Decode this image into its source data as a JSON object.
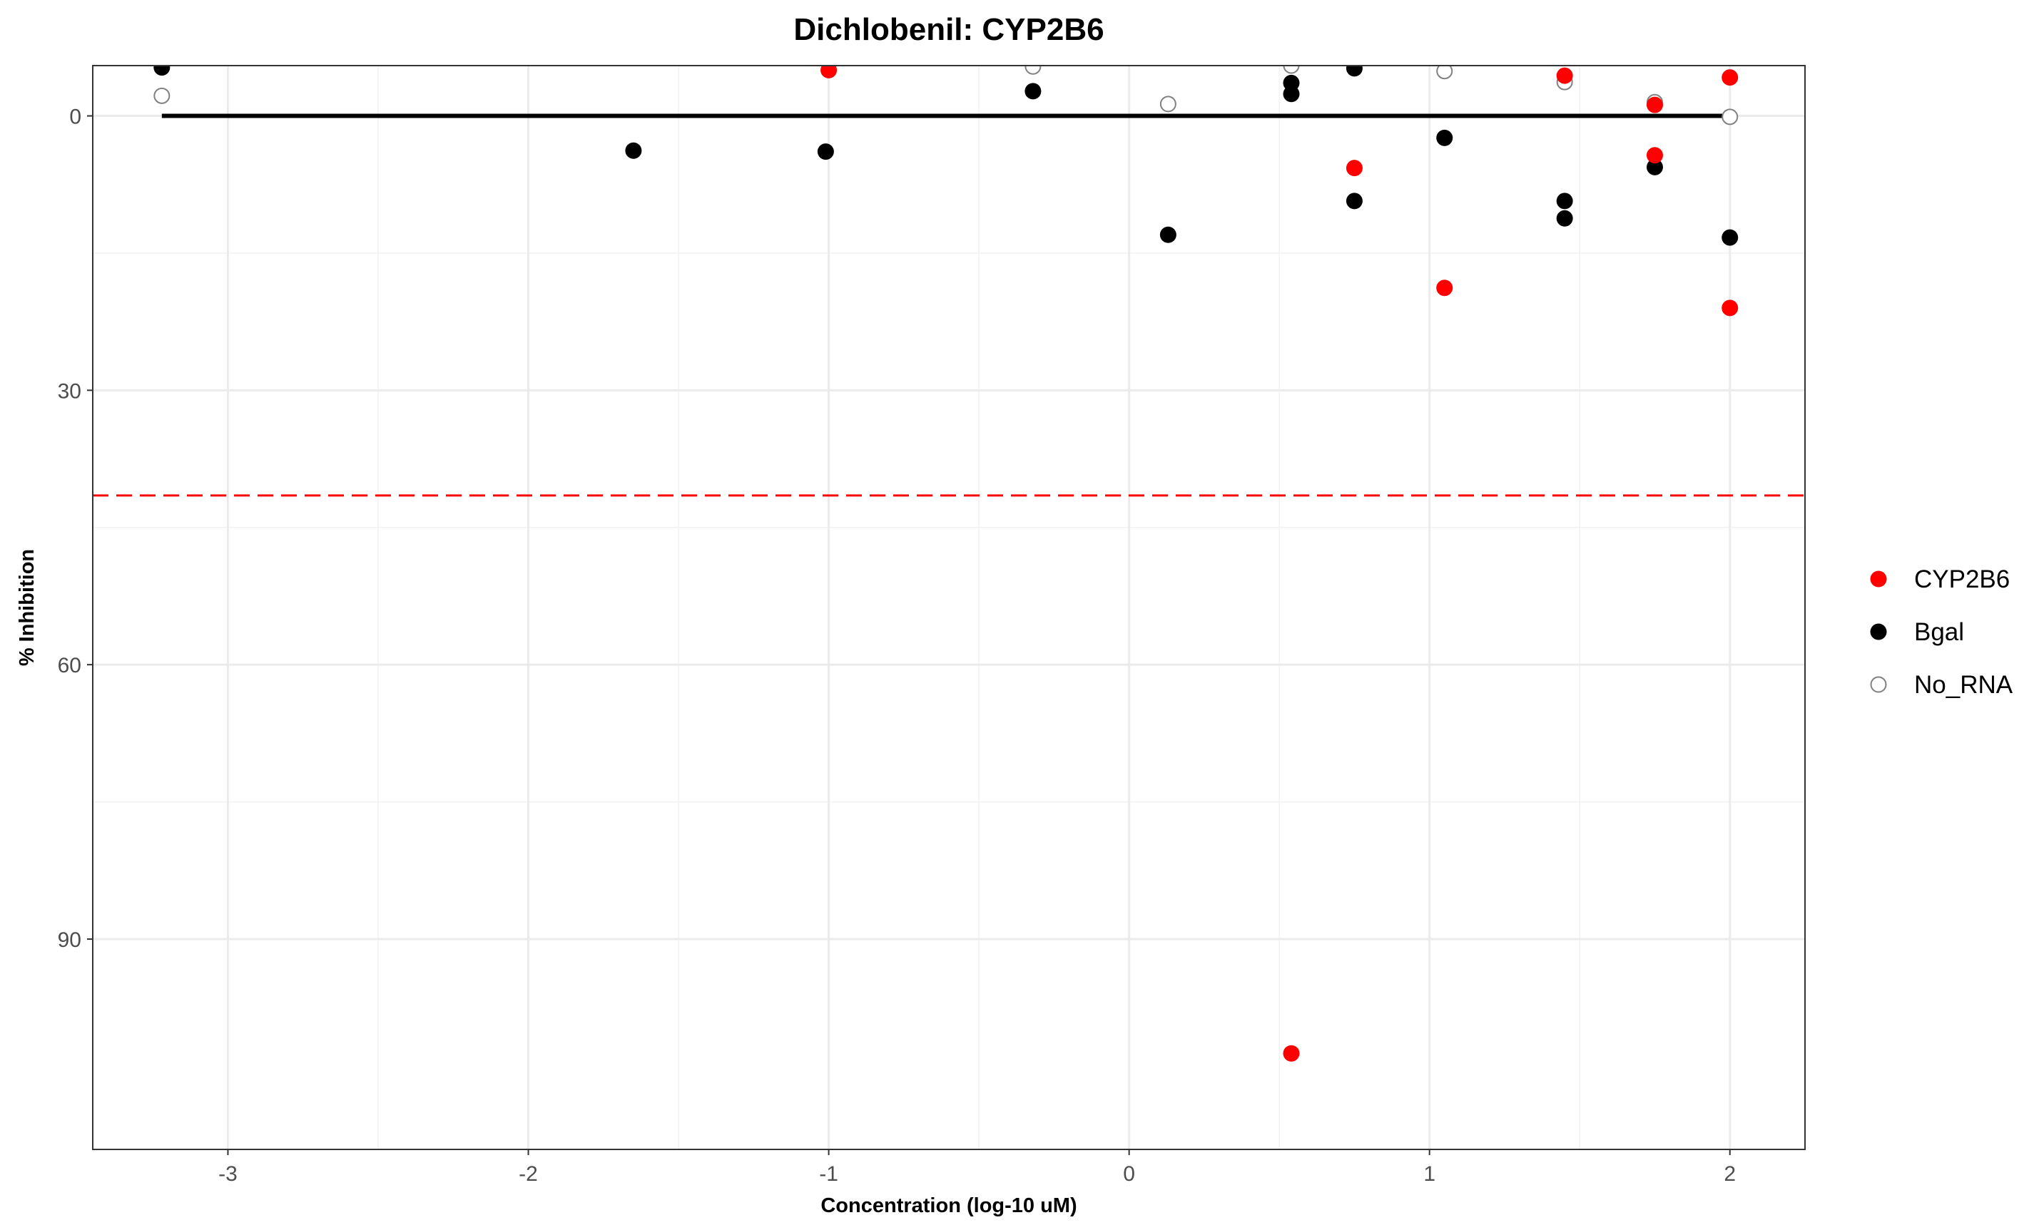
{
  "chart_data": {
    "type": "scatter",
    "title": "Dichlobenil: CYP2B6",
    "xlabel": "Concentration (log-10 uM)",
    "ylabel": "% Inhibition",
    "xlim": [
      -3.45,
      2.25
    ],
    "ylim": [
      113,
      -5.5
    ],
    "y_reversed": true,
    "x_ticks": [
      -3,
      -2,
      -1,
      0,
      1,
      2
    ],
    "x_tick_labels": [
      "-3",
      "-2",
      "-1",
      "0",
      "1",
      "2"
    ],
    "y_ticks": [
      0,
      30,
      60,
      90
    ],
    "y_tick_labels": [
      "0",
      "30",
      "60",
      "90"
    ],
    "grid": true,
    "legend_position": "right",
    "series": [
      {
        "name": "CYP2B6",
        "color": "#ff0000",
        "marker": "filled-circle",
        "points": [
          {
            "x": -1.0,
            "y": -5.0
          },
          {
            "x": 0.54,
            "y": 102.5
          },
          {
            "x": 0.75,
            "y": 5.7
          },
          {
            "x": 1.05,
            "y": 18.8
          },
          {
            "x": 1.45,
            "y": -4.4
          },
          {
            "x": 1.75,
            "y": 4.3
          },
          {
            "x": 1.75,
            "y": -1.2
          },
          {
            "x": 2.0,
            "y": -4.2
          },
          {
            "x": 2.0,
            "y": 21.0
          }
        ]
      },
      {
        "name": "Bgal",
        "color": "#000000",
        "marker": "filled-circle",
        "points": [
          {
            "x": -3.22,
            "y": -5.3
          },
          {
            "x": -1.65,
            "y": 3.8
          },
          {
            "x": -1.01,
            "y": 3.9
          },
          {
            "x": -0.32,
            "y": -2.7
          },
          {
            "x": 0.13,
            "y": 13.0
          },
          {
            "x": 0.54,
            "y": -3.6
          },
          {
            "x": 0.54,
            "y": -2.4
          },
          {
            "x": 0.75,
            "y": -5.2
          },
          {
            "x": 0.75,
            "y": 9.3
          },
          {
            "x": 1.05,
            "y": 2.4
          },
          {
            "x": 1.45,
            "y": 9.3
          },
          {
            "x": 1.45,
            "y": 11.2
          },
          {
            "x": 1.75,
            "y": 5.6
          },
          {
            "x": 2.0,
            "y": 13.3
          }
        ]
      },
      {
        "name": "No_RNA",
        "color": "#808080",
        "marker": "open-circle",
        "points": [
          {
            "x": -3.22,
            "y": -2.2
          },
          {
            "x": -0.32,
            "y": -5.4
          },
          {
            "x": 0.13,
            "y": -1.3
          },
          {
            "x": 0.54,
            "y": -5.5
          },
          {
            "x": 1.05,
            "y": -4.9
          },
          {
            "x": 1.45,
            "y": -3.7
          },
          {
            "x": 1.75,
            "y": -1.5
          },
          {
            "x": 2.0,
            "y": 0.1
          }
        ]
      }
    ],
    "fit_line": {
      "color": "#000000",
      "x": [
        -3.22,
        2.0
      ],
      "y": [
        0,
        0
      ]
    },
    "threshold_line": {
      "color": "#ff0000",
      "style": "dashed",
      "y": 41.5
    }
  }
}
